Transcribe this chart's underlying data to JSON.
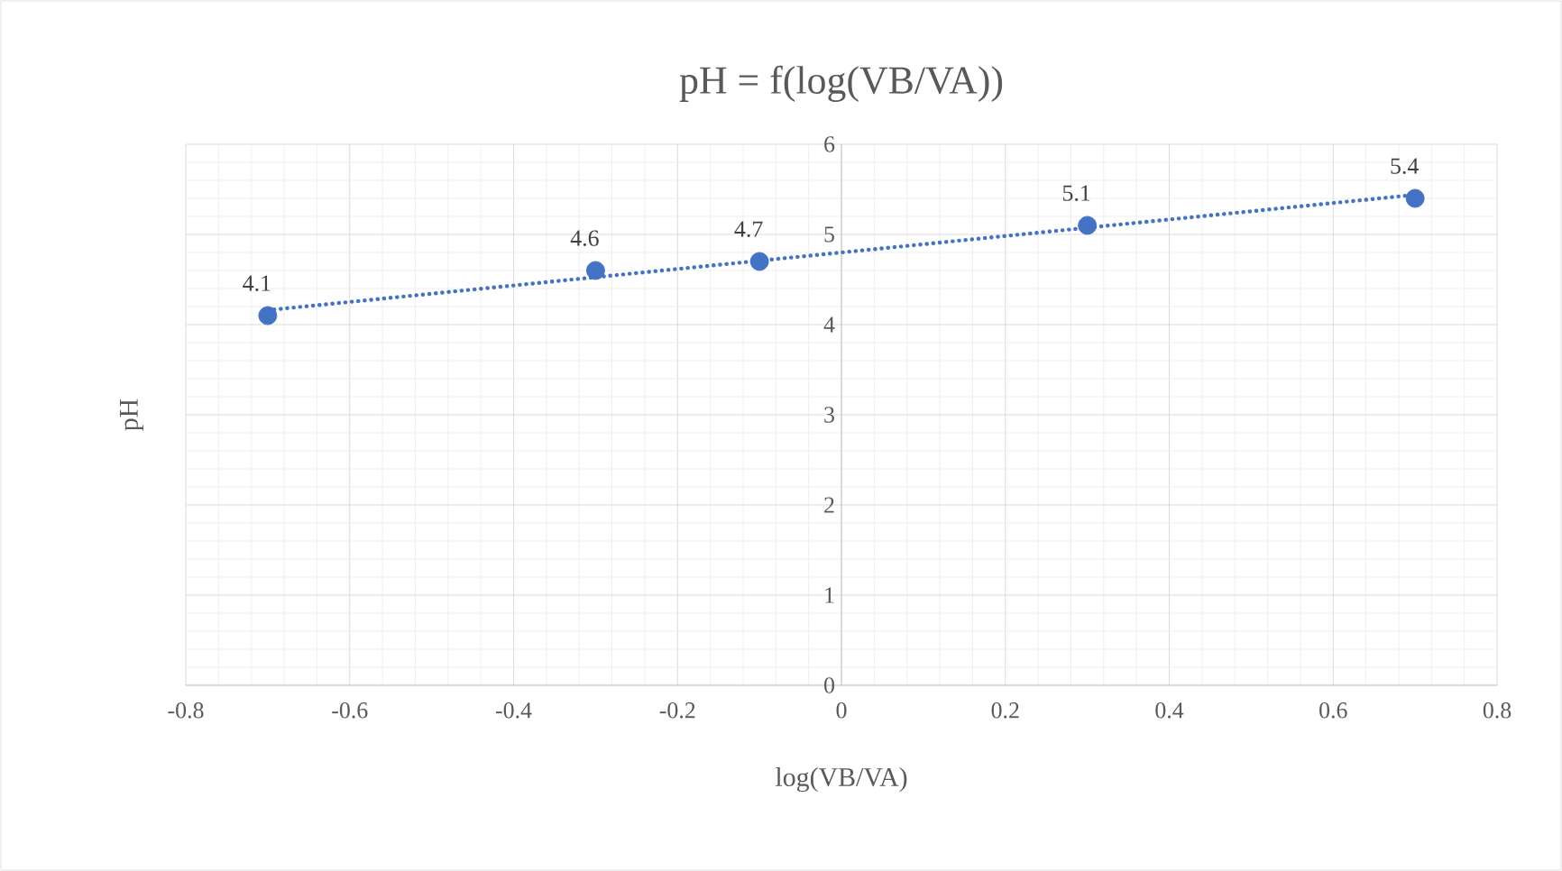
{
  "chart_data": {
    "type": "scatter",
    "title": "pH = f(log(VB/VA))",
    "xlabel": "log(VB/VA)",
    "ylabel": "pH",
    "xlim": [
      -0.8,
      0.8
    ],
    "ylim": [
      0,
      6
    ],
    "xticks": [
      -0.8,
      -0.6,
      -0.4,
      -0.2,
      0,
      0.2,
      0.4,
      0.6,
      0.8
    ],
    "yticks": [
      0,
      1,
      2,
      3,
      4,
      5,
      6
    ],
    "grid": true,
    "series": [
      {
        "color": "#4472c4",
        "marker": "circle",
        "x": [
          -0.7,
          -0.3,
          -0.1,
          0.3,
          0.7
        ],
        "values": [
          4.1,
          4.6,
          4.7,
          5.1,
          5.4
        ],
        "value_labels": [
          "4.1",
          "4.6",
          "4.7",
          "5.1",
          "5.4"
        ]
      },
      {
        "type": "line",
        "color": "#4472c4",
        "line_style": "dotted",
        "marker": "none",
        "x": [
          -0.7,
          0.7
        ],
        "values": [
          4.16,
          5.44
        ]
      }
    ]
  }
}
